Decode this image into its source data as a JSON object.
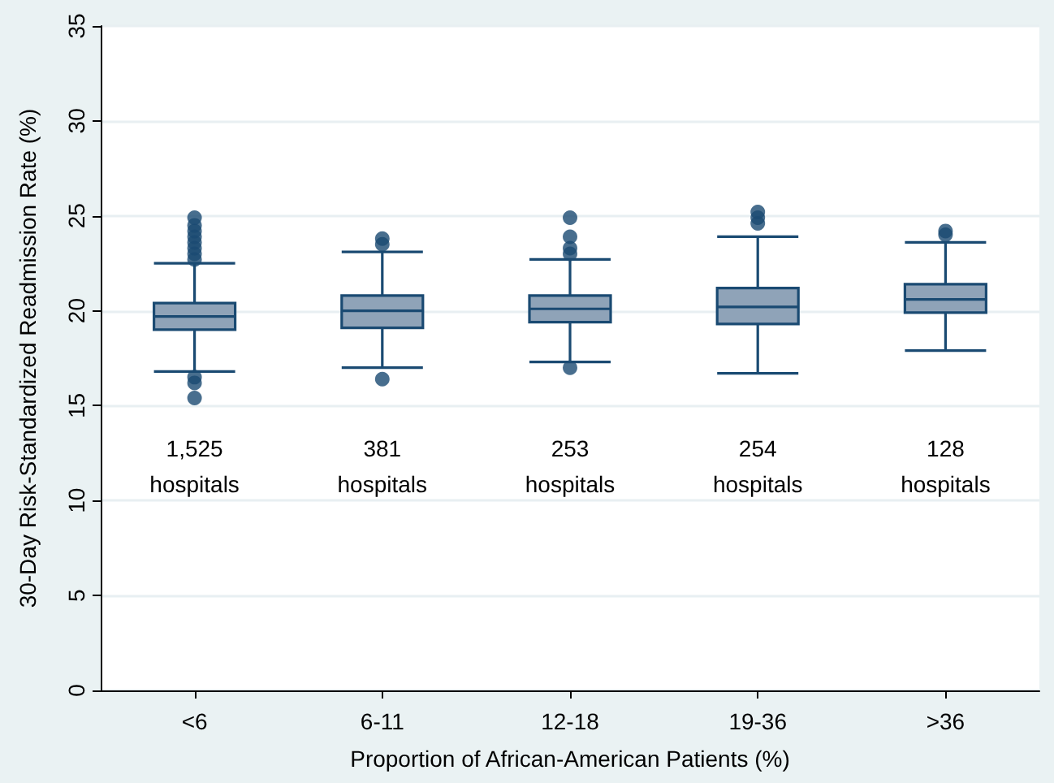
{
  "chart_data": {
    "type": "box",
    "xlabel": "Proportion of African-American Patients (%)",
    "ylabel": "30-Day Risk-Standardized Readmission Rate (%)",
    "categories": [
      "<6",
      "6-11",
      "12-18",
      "19-36",
      ">36"
    ],
    "boxes": [
      {
        "low": 16.8,
        "q1": 19.0,
        "median": 19.7,
        "q3": 20.4,
        "high": 22.5,
        "outliers": [
          22.7,
          23.0,
          23.3,
          23.6,
          23.9,
          24.2,
          24.5,
          24.9,
          16.5,
          16.2,
          15.4
        ]
      },
      {
        "low": 17.0,
        "q1": 19.1,
        "median": 20.0,
        "q3": 20.8,
        "high": 23.1,
        "outliers": [
          23.5,
          23.8,
          16.4
        ]
      },
      {
        "low": 17.3,
        "q1": 19.4,
        "median": 20.1,
        "q3": 20.8,
        "high": 22.7,
        "outliers": [
          23.0,
          23.3,
          23.9,
          24.9,
          17.0
        ]
      },
      {
        "low": 16.7,
        "q1": 19.3,
        "median": 20.2,
        "q3": 21.2,
        "high": 23.9,
        "outliers": [
          24.6,
          24.9,
          25.2
        ]
      },
      {
        "low": 17.9,
        "q1": 19.9,
        "median": 20.6,
        "q3": 21.4,
        "high": 23.6,
        "outliers": [
          24.0,
          24.2
        ]
      }
    ],
    "color": "#8fa3b8",
    "ylim": [
      0,
      35
    ],
    "yticks": [
      0,
      5,
      10,
      15,
      20,
      25,
      30,
      35
    ],
    "grid": "y",
    "marker": "circle",
    "annotations": [
      "1,525\nhospitals",
      "381\nhospitals",
      "253\nhospitals",
      "254\nhospitals",
      "128\nhospitals"
    ]
  }
}
